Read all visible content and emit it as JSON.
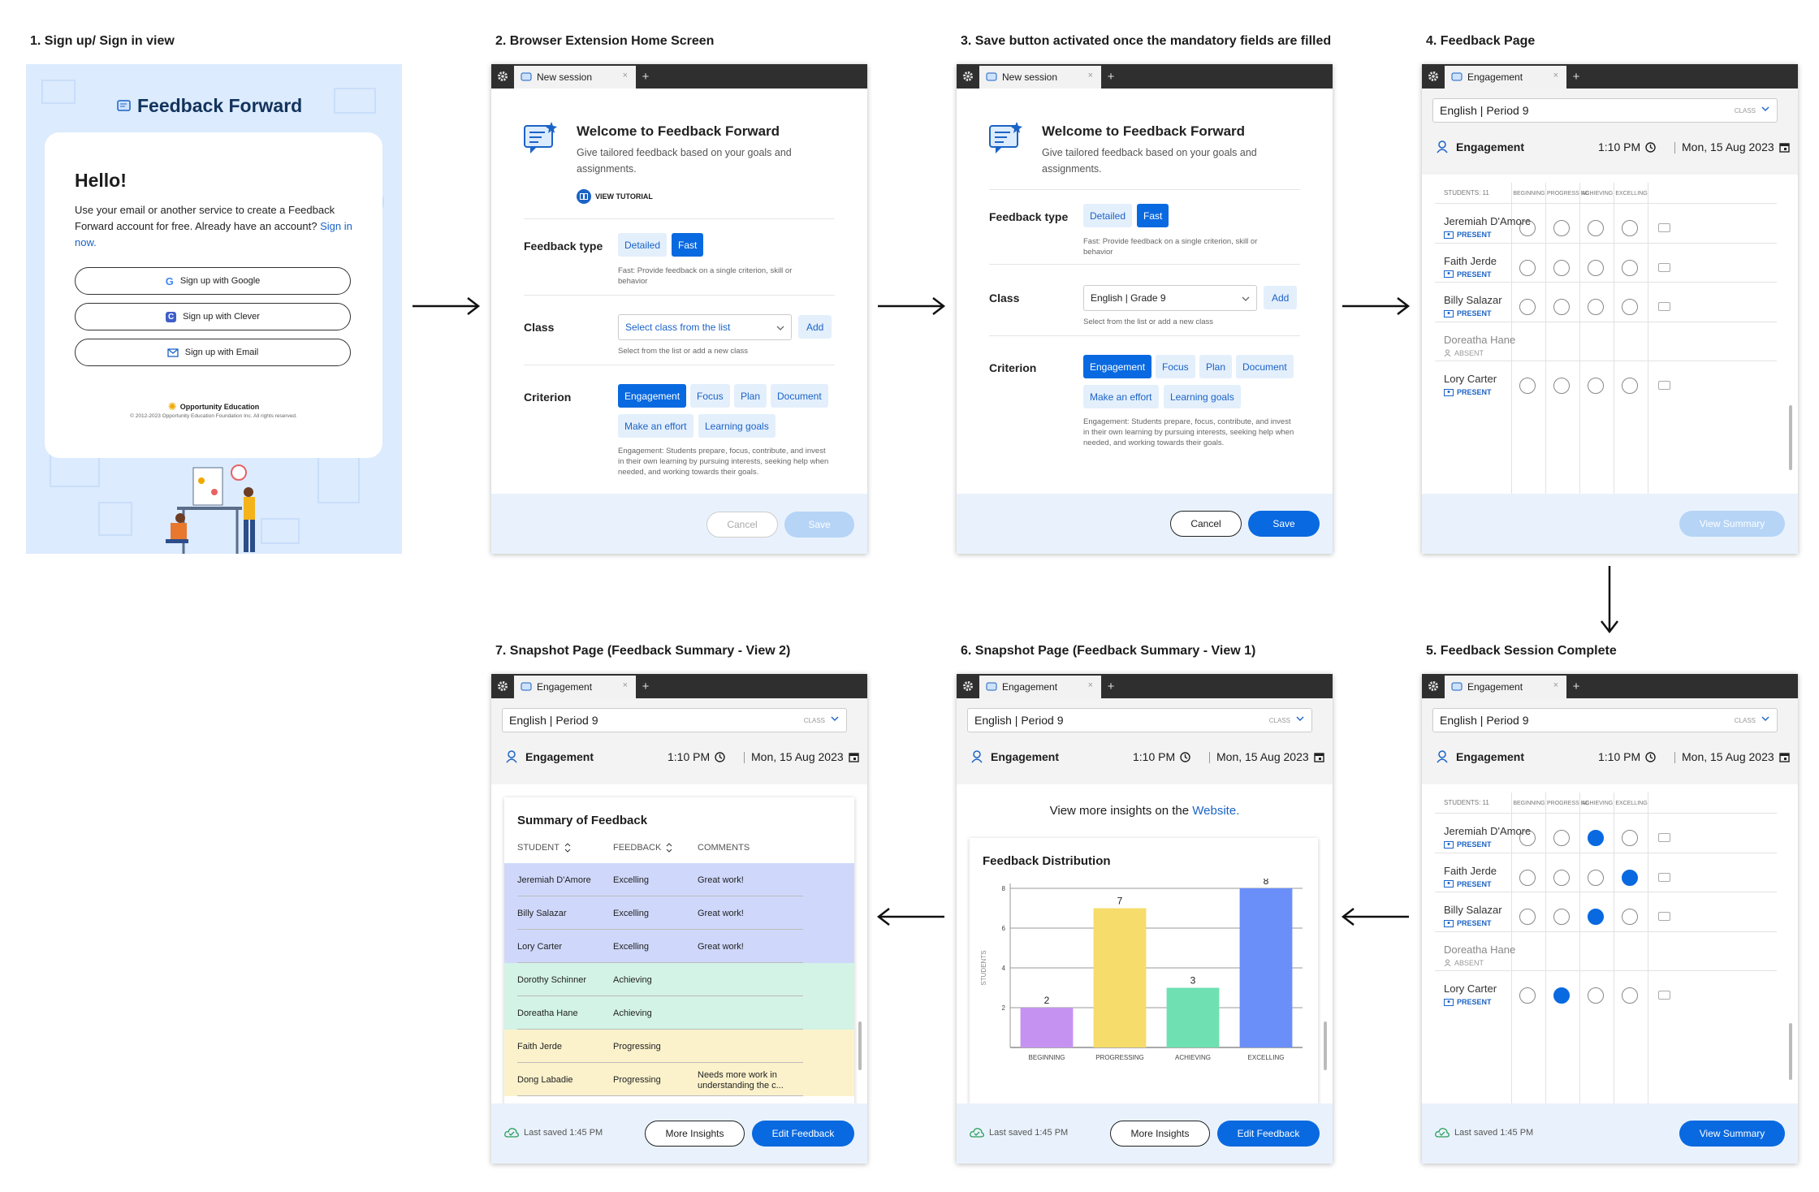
{
  "steps": [
    "1. Sign up/ Sign in view",
    "2. Browser Extension Home Screen",
    "3. Save button activated once the mandatory fields are filled",
    "4. Feedback Page",
    "5. Feedback Session Complete",
    "6. Snapshot Page (Feedback Summary - View 1)",
    "7. Snapshot Page (Feedback Summary - View 2)"
  ],
  "signin": {
    "brand": "Feedback Forward",
    "hello": "Hello!",
    "intro": "Use your email or another service to create a Feedback Forward account for free. Already have an account?",
    "signin_link": "Sign in now.",
    "google": "Sign up with Google",
    "clever": "Sign up with Clever",
    "email": "Sign up with Email",
    "org": "Opportunity Education",
    "copyright": "© 2012-2023 Opportunity Education Foundation Inc. All rights reserved."
  },
  "tabs": {
    "new_session": "New session",
    "engagement": "Engagement",
    "x": "×",
    "plus": "+"
  },
  "home": {
    "welcome": "Welcome to Feedback Forward",
    "subtitle": "Give tailored feedback based on your goals and assignments.",
    "tutorial": "VIEW TUTORIAL",
    "feedback_type": "Feedback type",
    "detailed": "Detailed",
    "fast": "Fast",
    "fast_note": "Fast: Provide feedback on a single criterion, skill or behavior",
    "class": "Class",
    "class_placeholder": "Select class from the list",
    "class_selected": "English | Grade 9",
    "add": "Add",
    "class_note": "Select from the list or add a new class",
    "criterion": "Criterion",
    "criteria": [
      "Engagement",
      "Focus",
      "Plan",
      "Document",
      "Make an effort",
      "Learning goals"
    ],
    "criterion_note": "Engagement: Students prepare, focus, contribute, and invest in their own learning by pursuing interests, seeking help when needed, and working towards their goals.",
    "cancel": "Cancel",
    "save": "Save"
  },
  "session": {
    "class": "English | Period 9",
    "class_tag": "CLASS",
    "criterion": "Engagement",
    "time": "1:10 PM",
    "date": "Mon, 15 Aug 2023",
    "students_count": "STUDENTS: 11",
    "levels": [
      "BEGINNING",
      "PROGRESSING",
      "ACHIEVING",
      "EXCELLING"
    ],
    "present": "PRESENT",
    "absent": "ABSENT",
    "students": [
      "Jeremiah D'Amore",
      "Faith Jerde",
      "Billy Salazar",
      "Doreatha Hane",
      "Lory Carter"
    ],
    "student_status": [
      "PRESENT",
      "PRESENT",
      "PRESENT",
      "ABSENT",
      "PRESENT"
    ],
    "complete_selection": [
      2,
      3,
      2,
      -1,
      1
    ],
    "view_summary": "View Summary",
    "last_saved": "Last saved 1:45 PM"
  },
  "snapshot": {
    "insights_text": "View more insights on the",
    "insights_link": "Website.",
    "more_insights": "More Insights",
    "edit_feedback": "Edit Feedback",
    "summary_title": "Summary of Feedback",
    "col_student": "STUDENT",
    "col_feedback": "FEEDBACK",
    "col_comments": "COMMENTS",
    "rows": [
      {
        "student": "Jeremiah D'Amore",
        "feedback": "Excelling",
        "comment": "Great work!"
      },
      {
        "student": "Billy Salazar",
        "feedback": "Excelling",
        "comment": "Great work!"
      },
      {
        "student": "Lory Carter",
        "feedback": "Excelling",
        "comment": "Great work!"
      },
      {
        "student": "Dorothy Schinner",
        "feedback": "Achieving",
        "comment": ""
      },
      {
        "student": "Doreatha Hane",
        "feedback": "Achieving",
        "comment": ""
      },
      {
        "student": "Faith Jerde",
        "feedback": "Progressing",
        "comment": ""
      },
      {
        "student": "Dong Labadie",
        "feedback": "Progressing",
        "comment": "Needs more work in understanding the c..."
      }
    ],
    "row_colors": [
      "#cfd8fb",
      "#cfd8fb",
      "#cfd8fb",
      "#d3f3e6",
      "#d3f3e6",
      "#fbf2cc",
      "#fbf2cc"
    ]
  },
  "chart_data": {
    "type": "bar",
    "title": "Feedback Distribution",
    "categories": [
      "BEGINNING",
      "PROGRESSING",
      "ACHIEVING",
      "EXCELLING"
    ],
    "values": [
      2,
      7,
      3,
      8
    ],
    "colors": [
      "#c592f2",
      "#f6dc6a",
      "#6fe0b2",
      "#6a8ff9"
    ],
    "ylabel": "STUDENTS",
    "xlabel": "",
    "yticks": [
      2,
      4,
      6,
      8
    ],
    "ylim": [
      0,
      8
    ]
  }
}
